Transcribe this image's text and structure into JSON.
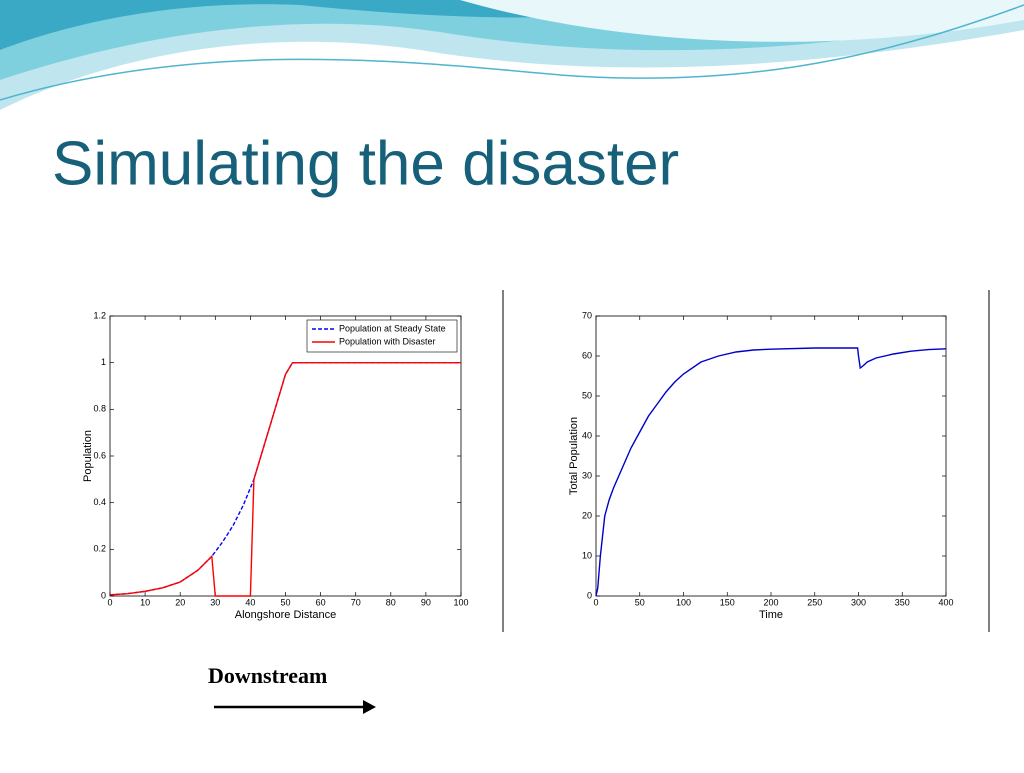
{
  "slide": {
    "title": "Simulating the disaster",
    "annotation": "Downstream"
  },
  "chart_data": [
    {
      "type": "line",
      "xlabel": "Alongshore Distance",
      "ylabel": "Population",
      "xlim": [
        0,
        100
      ],
      "xticks": [
        0,
        10,
        20,
        30,
        40,
        50,
        60,
        70,
        80,
        90,
        100
      ],
      "ylim": [
        0,
        1.2
      ],
      "yticks": [
        0,
        0.2,
        0.4,
        0.6,
        0.8,
        1,
        1.2
      ],
      "legend": "upper right",
      "series": [
        {
          "name": "Population at Steady State",
          "color": "#0000ff",
          "dashed": true,
          "x": [
            0,
            5,
            10,
            15,
            20,
            25,
            29,
            32,
            35,
            38,
            41,
            45,
            50,
            52,
            55,
            100
          ],
          "values": [
            0.005,
            0.01,
            0.02,
            0.035,
            0.06,
            0.11,
            0.17,
            0.23,
            0.3,
            0.39,
            0.5,
            0.7,
            0.95,
            1,
            1,
            1
          ]
        },
        {
          "name": "Population with Disaster",
          "color": "#ff0000",
          "dashed": false,
          "x": [
            0,
            5,
            10,
            15,
            20,
            25,
            29,
            30,
            40,
            41,
            45,
            50,
            52,
            55,
            100
          ],
          "values": [
            0.005,
            0.01,
            0.02,
            0.035,
            0.06,
            0.11,
            0.17,
            0,
            0,
            0.5,
            0.7,
            0.95,
            1,
            1,
            1
          ]
        }
      ]
    },
    {
      "type": "line",
      "xlabel": "Time",
      "ylabel": "Total Population",
      "xlim": [
        0,
        400
      ],
      "xticks": [
        0,
        50,
        100,
        150,
        200,
        250,
        300,
        350,
        400
      ],
      "ylim": [
        0,
        70
      ],
      "yticks": [
        0,
        10,
        20,
        30,
        40,
        50,
        60,
        70
      ],
      "series": [
        {
          "color": "#0000cc",
          "dashed": false,
          "x": [
            0,
            2,
            5,
            10,
            15,
            20,
            30,
            40,
            50,
            60,
            70,
            80,
            90,
            100,
            120,
            140,
            160,
            180,
            200,
            250,
            299,
            300,
            302,
            305,
            310,
            320,
            340,
            360,
            380,
            400
          ],
          "values": [
            0,
            2,
            10,
            20,
            24,
            27,
            32,
            37,
            41,
            45,
            48,
            51,
            53.5,
            55.5,
            58.5,
            60,
            61,
            61.5,
            61.7,
            62,
            62,
            60,
            57,
            57.5,
            58.5,
            59.5,
            60.5,
            61.2,
            61.6,
            61.8
          ]
        }
      ]
    }
  ]
}
